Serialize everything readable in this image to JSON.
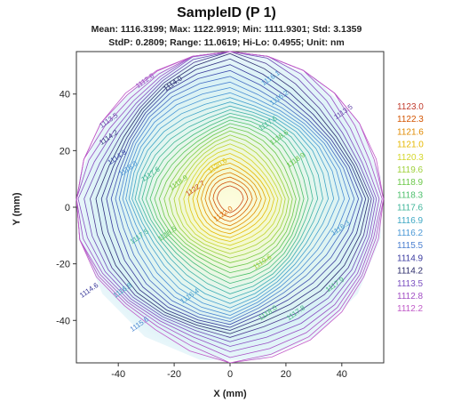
{
  "chart_data": {
    "type": "contour",
    "title": "SampleID (P 1)",
    "stats_line1": "Mean: 1116.3199; Max: 1122.9919; Min: 1111.9301; Std: 3.1359",
    "stats_line2": "StdP: 0.2809; Range: 11.0619; Hi-Lo: 0.4955; Unit: nm",
    "xlabel": "X (mm)",
    "ylabel": "Y (mm)",
    "xlim": [
      -55,
      55
    ],
    "ylim": [
      -55,
      55
    ],
    "x_ticks": [
      "-40",
      "-20",
      "0",
      "20",
      "40"
    ],
    "y_ticks": [
      "40",
      "20",
      "0",
      "-20",
      "-40"
    ],
    "x_tick_values": [
      -40,
      -20,
      0,
      20,
      40
    ],
    "y_tick_values": [
      40,
      20,
      0,
      -20,
      -40
    ],
    "wafer_radius": 55,
    "center": [
      0,
      3
    ],
    "z_min": 1111.9301,
    "z_max": 1122.9919,
    "contour_step": 0.3,
    "legend": {
      "placement": "right",
      "levels": [
        "1123.0",
        "1122.3",
        "1121.6",
        "1121.0",
        "1120.3",
        "1119.6",
        "1118.9",
        "1118.3",
        "1117.6",
        "1116.9",
        "1116.2",
        "1115.5",
        "1114.9",
        "1114.2",
        "1113.5",
        "1112.8",
        "1112.2"
      ],
      "colors": [
        "#c0392b",
        "#d35400",
        "#e08a00",
        "#e6b800",
        "#d4d62a",
        "#9fd13a",
        "#6cc84a",
        "#4bbf6b",
        "#3fb59a",
        "#3fa8c4",
        "#4a98d6",
        "#4a7fd0",
        "#3a3aa0",
        "#2a2a6a",
        "#7a4fc0",
        "#a24fc4",
        "#c05bc8"
      ]
    },
    "contour_labels": [
      {
        "text": "1112.8",
        "x": -30,
        "y": 44
      },
      {
        "text": "1114.0",
        "x": -20,
        "y": 43
      },
      {
        "text": "1113.5",
        "x": -43,
        "y": 30
      },
      {
        "text": "1114.2",
        "x": -43,
        "y": 24
      },
      {
        "text": "1114.9",
        "x": -40,
        "y": 17
      },
      {
        "text": "1116.0",
        "x": -36,
        "y": 13
      },
      {
        "text": "1116.1",
        "x": 15,
        "y": 45
      },
      {
        "text": "1116.2",
        "x": 18,
        "y": 38
      },
      {
        "text": "1113.5",
        "x": 41,
        "y": 33
      },
      {
        "text": "1117.6",
        "x": 14,
        "y": 29
      },
      {
        "text": "1118.9",
        "x": 24,
        "y": 16
      },
      {
        "text": "1118.6",
        "x": 18,
        "y": 24
      },
      {
        "text": "1117.6",
        "x": -28,
        "y": 11
      },
      {
        "text": "1118.9",
        "x": -18,
        "y": 8
      },
      {
        "text": "1120.6",
        "x": -4,
        "y": 14
      },
      {
        "text": "1122.7",
        "x": -12,
        "y": 6
      },
      {
        "text": "1122.0",
        "x": -2,
        "y": -3
      },
      {
        "text": "1117.5",
        "x": -32,
        "y": -11
      },
      {
        "text": "1118.5",
        "x": -22,
        "y": -10
      },
      {
        "text": "1116.8",
        "x": -38,
        "y": -30
      },
      {
        "text": "1114.6",
        "x": -50,
        "y": -30
      },
      {
        "text": "1115.6",
        "x": -32,
        "y": -42
      },
      {
        "text": "1116.4",
        "x": -14,
        "y": -32
      },
      {
        "text": "1119.6",
        "x": 12,
        "y": -20
      },
      {
        "text": "1118.0",
        "x": 14,
        "y": -38
      },
      {
        "text": "1117.8",
        "x": 24,
        "y": -38
      },
      {
        "text": "1116.3",
        "x": 40,
        "y": -8
      },
      {
        "text": "1117.9",
        "x": 38,
        "y": -28
      }
    ]
  }
}
